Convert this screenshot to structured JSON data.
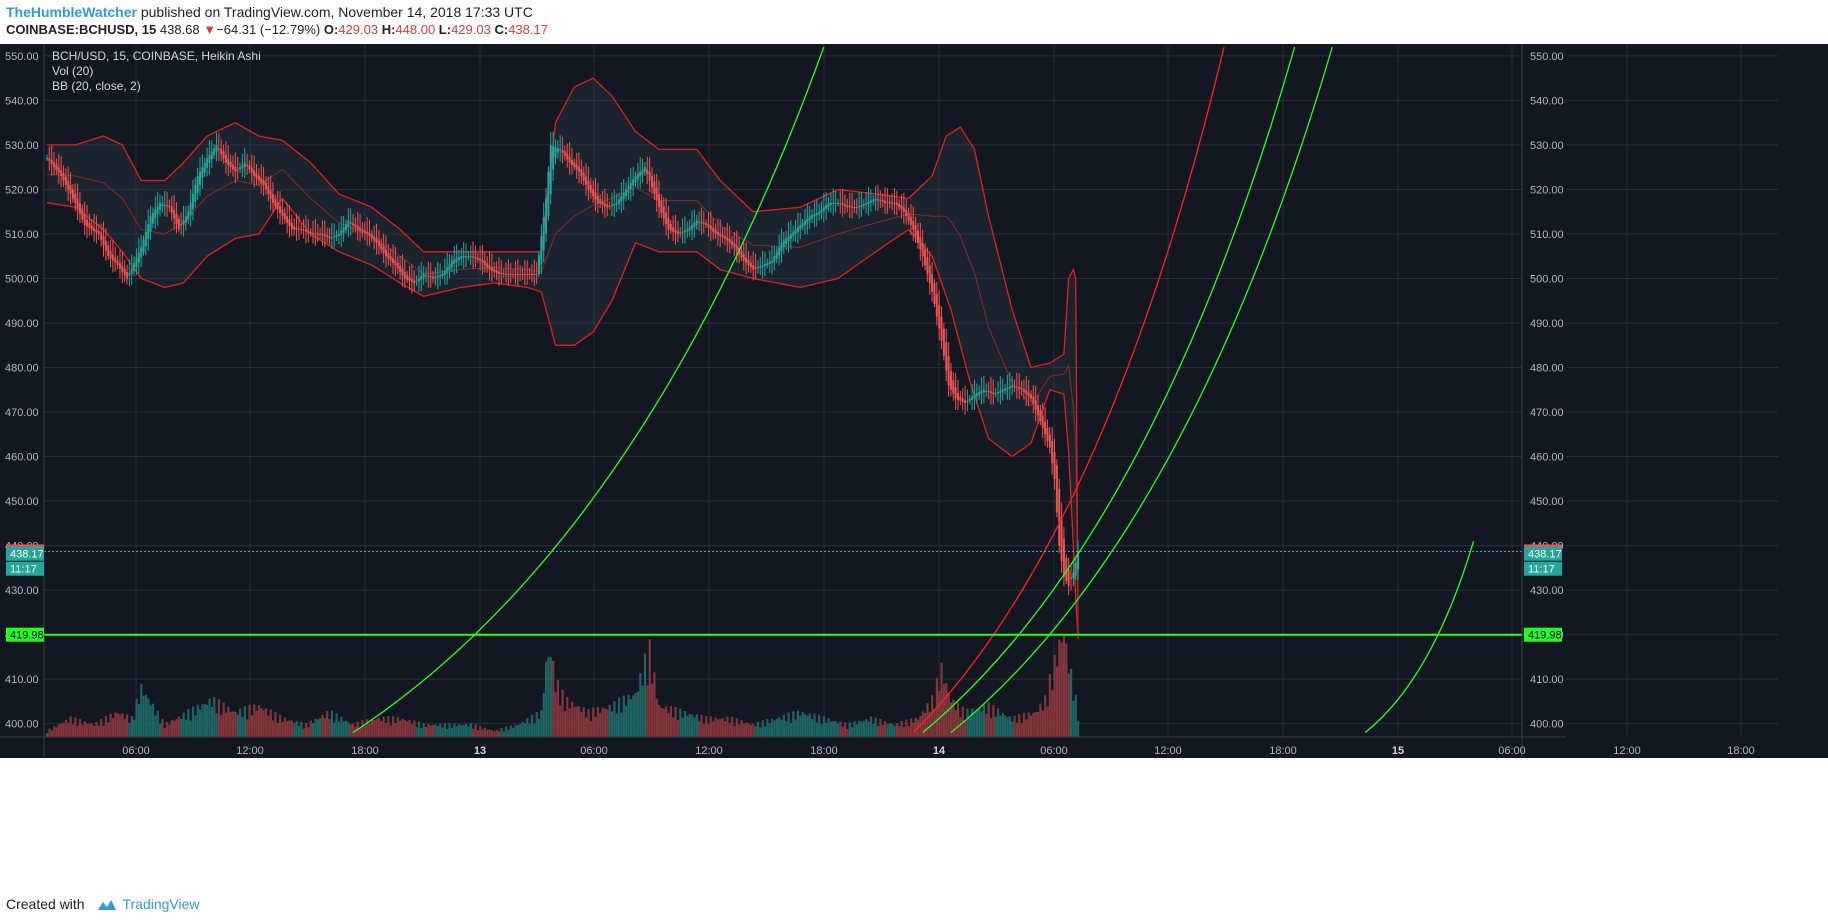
{
  "header": {
    "author": "TheHumbleWatcher",
    "published_text": "published on TradingView.com, November 14, 2018 17:33 UTC",
    "symbol": "COINBASE:BCHUSD, 15",
    "last": "438.68",
    "arrow": "▼",
    "change": "−64.31 (−12.79%)",
    "o_label": "O:",
    "o_value": "429.03",
    "h_label": "H:",
    "h_value": "448.00",
    "l_label": "L:",
    "l_value": "429.03",
    "c_label": "C:",
    "c_value": "438.17"
  },
  "legend": {
    "line1": "BCH/USD, 15, COINBASE, Heikin Ashi",
    "line2": "Vol (20)",
    "line3": "BB (20, close, 2)"
  },
  "footer": {
    "created_with": "Created with",
    "brand": "TradingView"
  },
  "colors": {
    "background": "#131722",
    "grid": "#2a2e39",
    "up": "#26a69a",
    "down": "#ef5350",
    "bb": "#e02020",
    "green_line": "#22ff22",
    "red_line": "#ff2020",
    "axis_text": "#b2b5be"
  },
  "chart_data": {
    "type": "candlestick",
    "title": "BCH/USD, 15, COINBASE, Heikin Ashi",
    "ylim": [
      397,
      552
    ],
    "y_ticks": [
      400,
      410,
      420,
      430,
      440,
      450,
      460,
      470,
      480,
      490,
      500,
      510,
      520,
      530,
      540,
      550
    ],
    "x_ticks": [
      "06:00",
      "12:00",
      "18:00",
      "13",
      "06:00",
      "12:00",
      "18:00",
      "14",
      "06:00",
      "12:00",
      "18:00",
      "15",
      "06:00",
      "12:00",
      "18:00"
    ],
    "price_tags": [
      {
        "label": "438.68",
        "value": 438.68,
        "color": "#ef5350"
      },
      {
        "label": "438.17",
        "value": 438.17,
        "color": "#26a69a"
      },
      {
        "label": "11:17",
        "value": 434.8,
        "color": "#26a69a"
      },
      {
        "label": "419.98",
        "value": 419.98,
        "color": "#22ff22"
      }
    ],
    "horizontal_line": 419.98,
    "close_key_points": [
      [
        0,
        527
      ],
      [
        6,
        523
      ],
      [
        12,
        517
      ],
      [
        16,
        512
      ],
      [
        22,
        510
      ],
      [
        26,
        505
      ],
      [
        30,
        503
      ],
      [
        34,
        500
      ],
      [
        40,
        507
      ],
      [
        44,
        514
      ],
      [
        48,
        517
      ],
      [
        52,
        516
      ],
      [
        56,
        511
      ],
      [
        60,
        515
      ],
      [
        64,
        523
      ],
      [
        68,
        527
      ],
      [
        72,
        530
      ],
      [
        76,
        526
      ],
      [
        80,
        524
      ],
      [
        84,
        526
      ],
      [
        88,
        523
      ],
      [
        92,
        521
      ],
      [
        96,
        517
      ],
      [
        100,
        514
      ],
      [
        104,
        511
      ],
      [
        108,
        511
      ],
      [
        112,
        510
      ],
      [
        116,
        510
      ],
      [
        120,
        509
      ],
      [
        124,
        510
      ],
      [
        128,
        513
      ],
      [
        132,
        511
      ],
      [
        136,
        510
      ],
      [
        140,
        508
      ],
      [
        144,
        505
      ],
      [
        148,
        503
      ],
      [
        152,
        500
      ],
      [
        156,
        499
      ],
      [
        160,
        501
      ],
      [
        164,
        500
      ],
      [
        168,
        501
      ],
      [
        172,
        504
      ],
      [
        176,
        505
      ],
      [
        180,
        505
      ],
      [
        184,
        504
      ],
      [
        188,
        502
      ],
      [
        192,
        501
      ],
      [
        196,
        501
      ],
      [
        200,
        501
      ],
      [
        204,
        501
      ],
      [
        208,
        501
      ],
      [
        212,
        518
      ],
      [
        214,
        530
      ],
      [
        218,
        529
      ],
      [
        222,
        526
      ],
      [
        226,
        524
      ],
      [
        230,
        520
      ],
      [
        234,
        517
      ],
      [
        238,
        516
      ],
      [
        242,
        517
      ],
      [
        246,
        520
      ],
      [
        250,
        523
      ],
      [
        254,
        525
      ],
      [
        256,
        522
      ],
      [
        260,
        516
      ],
      [
        264,
        511
      ],
      [
        268,
        510
      ],
      [
        272,
        511
      ],
      [
        276,
        513
      ],
      [
        280,
        512
      ],
      [
        284,
        510
      ],
      [
        288,
        509
      ],
      [
        292,
        507
      ],
      [
        296,
        504
      ],
      [
        300,
        502
      ],
      [
        304,
        503
      ],
      [
        308,
        504
      ],
      [
        312,
        508
      ],
      [
        316,
        510
      ],
      [
        320,
        512
      ],
      [
        324,
        514
      ],
      [
        328,
        515
      ],
      [
        332,
        517
      ],
      [
        336,
        517
      ],
      [
        340,
        516
      ],
      [
        344,
        516
      ],
      [
        348,
        517
      ],
      [
        352,
        518
      ],
      [
        356,
        517
      ],
      [
        360,
        517
      ],
      [
        364,
        515
      ],
      [
        368,
        511
      ],
      [
        372,
        505
      ],
      [
        376,
        497
      ],
      [
        380,
        486
      ],
      [
        383,
        476
      ],
      [
        386,
        473
      ],
      [
        390,
        472
      ],
      [
        394,
        474
      ],
      [
        398,
        475
      ],
      [
        402,
        474
      ],
      [
        406,
        475
      ],
      [
        410,
        476
      ],
      [
        414,
        475
      ],
      [
        418,
        473
      ],
      [
        422,
        468
      ],
      [
        426,
        462
      ],
      [
        428,
        455
      ],
      [
        430,
        440
      ],
      [
        432,
        433
      ],
      [
        434,
        431
      ],
      [
        436,
        434
      ],
      [
        438,
        438.17
      ]
    ],
    "volume_key_points": [
      [
        0,
        1
      ],
      [
        10,
        3
      ],
      [
        20,
        2
      ],
      [
        30,
        4
      ],
      [
        36,
        3
      ],
      [
        40,
        8
      ],
      [
        50,
        2
      ],
      [
        60,
        4
      ],
      [
        70,
        6
      ],
      [
        80,
        4
      ],
      [
        90,
        5
      ],
      [
        100,
        3
      ],
      [
        110,
        2
      ],
      [
        120,
        4
      ],
      [
        130,
        2
      ],
      [
        140,
        3
      ],
      [
        150,
        3
      ],
      [
        160,
        2
      ],
      [
        170,
        2
      ],
      [
        180,
        2
      ],
      [
        190,
        1
      ],
      [
        200,
        2
      ],
      [
        205,
        3
      ],
      [
        210,
        4
      ],
      [
        212,
        12
      ],
      [
        214,
        14
      ],
      [
        216,
        9
      ],
      [
        220,
        6
      ],
      [
        230,
        4
      ],
      [
        240,
        5
      ],
      [
        250,
        7
      ],
      [
        254,
        12
      ],
      [
        256,
        14
      ],
      [
        260,
        5
      ],
      [
        270,
        4
      ],
      [
        280,
        3
      ],
      [
        290,
        3
      ],
      [
        300,
        2
      ],
      [
        310,
        3
      ],
      [
        320,
        4
      ],
      [
        330,
        3
      ],
      [
        340,
        2
      ],
      [
        350,
        3
      ],
      [
        360,
        2
      ],
      [
        370,
        3
      ],
      [
        376,
        6
      ],
      [
        380,
        11
      ],
      [
        384,
        6
      ],
      [
        390,
        4
      ],
      [
        400,
        5
      ],
      [
        410,
        3
      ],
      [
        420,
        4
      ],
      [
        424,
        6
      ],
      [
        428,
        12
      ],
      [
        430,
        15
      ],
      [
        432,
        17
      ],
      [
        434,
        12
      ],
      [
        436,
        8
      ],
      [
        438,
        4
      ]
    ],
    "volume_max": 20,
    "bb_upper_key_points": [
      [
        0,
        530
      ],
      [
        12,
        530
      ],
      [
        24,
        532
      ],
      [
        32,
        530
      ],
      [
        40,
        522
      ],
      [
        50,
        522
      ],
      [
        58,
        526
      ],
      [
        68,
        532
      ],
      [
        80,
        535
      ],
      [
        90,
        532
      ],
      [
        100,
        531
      ],
      [
        112,
        526
      ],
      [
        124,
        519
      ],
      [
        138,
        516
      ],
      [
        150,
        511
      ],
      [
        160,
        506
      ],
      [
        176,
        506
      ],
      [
        190,
        506
      ],
      [
        204,
        506
      ],
      [
        210,
        506
      ],
      [
        216,
        535
      ],
      [
        224,
        543
      ],
      [
        232,
        545
      ],
      [
        240,
        541
      ],
      [
        250,
        533
      ],
      [
        260,
        529
      ],
      [
        276,
        529
      ],
      [
        286,
        522
      ],
      [
        300,
        515
      ],
      [
        320,
        516
      ],
      [
        336,
        520
      ],
      [
        352,
        519
      ],
      [
        366,
        518
      ],
      [
        376,
        523
      ],
      [
        382,
        532
      ],
      [
        388,
        534
      ],
      [
        394,
        529
      ],
      [
        400,
        514
      ],
      [
        410,
        493
      ],
      [
        418,
        480
      ],
      [
        426,
        481
      ],
      [
        432,
        483
      ],
      [
        434,
        500
      ],
      [
        436,
        502
      ],
      [
        437,
        500
      ],
      [
        438,
        420
      ]
    ],
    "bb_lower_key_points": [
      [
        0,
        517
      ],
      [
        12,
        516
      ],
      [
        24,
        511
      ],
      [
        32,
        506
      ],
      [
        40,
        500
      ],
      [
        50,
        498
      ],
      [
        58,
        499
      ],
      [
        68,
        505
      ],
      [
        80,
        509
      ],
      [
        90,
        510
      ],
      [
        100,
        518
      ],
      [
        112,
        510
      ],
      [
        124,
        506
      ],
      [
        138,
        503
      ],
      [
        150,
        499
      ],
      [
        160,
        496
      ],
      [
        176,
        498
      ],
      [
        190,
        499
      ],
      [
        204,
        498
      ],
      [
        210,
        497
      ],
      [
        216,
        485
      ],
      [
        224,
        485
      ],
      [
        232,
        488
      ],
      [
        240,
        495
      ],
      [
        250,
        508
      ],
      [
        260,
        506
      ],
      [
        276,
        506
      ],
      [
        286,
        502
      ],
      [
        300,
        500
      ],
      [
        320,
        498
      ],
      [
        336,
        500
      ],
      [
        352,
        506
      ],
      [
        366,
        511
      ],
      [
        376,
        505
      ],
      [
        384,
        493
      ],
      [
        392,
        477
      ],
      [
        400,
        464
      ],
      [
        410,
        460
      ],
      [
        418,
        463
      ],
      [
        426,
        475
      ],
      [
        432,
        474
      ],
      [
        434,
        461
      ],
      [
        436,
        440
      ],
      [
        437,
        428
      ],
      [
        438,
        419
      ]
    ],
    "trendlines": [
      {
        "color": "green",
        "from": [
          130,
          398
        ],
        "to": [
          330,
          552
        ]
      },
      {
        "color": "red",
        "from": [
          368,
          398
        ],
        "to": [
          500,
          552
        ]
      },
      {
        "color": "green",
        "from": [
          372,
          398
        ],
        "to": [
          530,
          552
        ]
      },
      {
        "color": "green",
        "from": [
          384,
          398
        ],
        "to": [
          546,
          552
        ]
      },
      {
        "color": "green",
        "from": [
          560,
          398
        ],
        "to": [
          606,
          441
        ]
      }
    ]
  }
}
